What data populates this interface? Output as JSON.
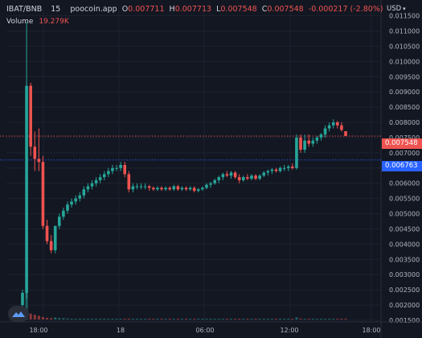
{
  "header": {
    "symbol": "IBAT/BNB",
    "interval": "15",
    "source": "poocoin.app",
    "open_label": "O",
    "open": "0.007711",
    "high_label": "H",
    "high": "0.007713",
    "low_label": "L",
    "low": "0.007548",
    "close_label": "C",
    "close": "0.007548",
    "change": "-0.000217 (-2.80%)"
  },
  "volume": {
    "label": "Volume",
    "value": "19.279K"
  },
  "currency": {
    "label": "USD"
  },
  "price_tags": {
    "last": "0.007548",
    "prev": "0.006763"
  },
  "colors": {
    "background": "#131722",
    "up": "#26a69a",
    "down": "#ef5350",
    "grid": "#1e2230",
    "prev_line": "#2962ff"
  },
  "icons": {
    "logo": "tradingview-logo-icon",
    "chevron": "chevron-down-icon"
  },
  "chart_data": {
    "type": "candlestick",
    "x_ticks": [
      "18:00",
      "18",
      "06:00",
      "12:00",
      "18:00"
    ],
    "y_ticks": [
      "0.011500",
      "0.011000",
      "0.010500",
      "0.010000",
      "0.009500",
      "0.009000",
      "0.008500",
      "0.008000",
      "0.007500",
      "0.007000",
      "0.006500",
      "0.006000",
      "0.005500",
      "0.005000",
      "0.004500",
      "0.004000",
      "0.003500",
      "0.003000",
      "0.002500",
      "0.002000",
      "0.001500"
    ],
    "ylim": [
      0.0015,
      0.0117
    ],
    "grid": true,
    "candles": [
      [
        0.002,
        0.0025,
        0.0019,
        0.0024
      ],
      [
        0.0024,
        0.0113,
        0.0022,
        0.0092
      ],
      [
        0.0092,
        0.0093,
        0.0069,
        0.0072
      ],
      [
        0.0072,
        0.0077,
        0.0064,
        0.0068
      ],
      [
        0.0068,
        0.0078,
        0.0064,
        0.0067
      ],
      [
        0.0067,
        0.0069,
        0.0045,
        0.0046
      ],
      [
        0.0046,
        0.0048,
        0.004,
        0.0041
      ],
      [
        0.0041,
        0.0043,
        0.0037,
        0.0038
      ],
      [
        0.0038,
        0.0046,
        0.0037,
        0.0046
      ],
      [
        0.0046,
        0.005,
        0.0045,
        0.0049
      ],
      [
        0.0049,
        0.0052,
        0.0048,
        0.0051
      ],
      [
        0.0051,
        0.0054,
        0.005,
        0.0053
      ],
      [
        0.0053,
        0.0055,
        0.0052,
        0.0054
      ],
      [
        0.0054,
        0.0056,
        0.0053,
        0.0055
      ],
      [
        0.0055,
        0.0057,
        0.0054,
        0.0056
      ],
      [
        0.0056,
        0.0059,
        0.0055,
        0.0058
      ],
      [
        0.0058,
        0.006,
        0.0057,
        0.0059
      ],
      [
        0.0059,
        0.0061,
        0.0058,
        0.006
      ],
      [
        0.006,
        0.0062,
        0.0059,
        0.0061
      ],
      [
        0.0061,
        0.0063,
        0.006,
        0.0062
      ],
      [
        0.0062,
        0.0064,
        0.0061,
        0.0063
      ],
      [
        0.0063,
        0.0065,
        0.0062,
        0.0064
      ],
      [
        0.0064,
        0.0066,
        0.0063,
        0.0065
      ],
      [
        0.0065,
        0.0066,
        0.0064,
        0.0065
      ],
      [
        0.0065,
        0.0067,
        0.0064,
        0.0066
      ],
      [
        0.0066,
        0.0067,
        0.0062,
        0.0063
      ],
      [
        0.0063,
        0.0064,
        0.0057,
        0.0058
      ],
      [
        0.0058,
        0.006,
        0.0057,
        0.0059
      ],
      [
        0.0059,
        0.006,
        0.0058,
        0.0059
      ],
      [
        0.0059,
        0.006,
        0.0058,
        0.0059
      ],
      [
        0.0059,
        0.006,
        0.0058,
        0.0059
      ],
      [
        0.0059,
        0.00595,
        0.00575,
        0.00585
      ],
      [
        0.00585,
        0.0059,
        0.00575,
        0.0058
      ],
      [
        0.0058,
        0.0059,
        0.00575,
        0.00585
      ],
      [
        0.00585,
        0.0059,
        0.00575,
        0.0058
      ],
      [
        0.0058,
        0.0059,
        0.00575,
        0.00585
      ],
      [
        0.00585,
        0.0059,
        0.00575,
        0.0058
      ],
      [
        0.0058,
        0.00595,
        0.00575,
        0.0059
      ],
      [
        0.0059,
        0.00595,
        0.00575,
        0.0058
      ],
      [
        0.0058,
        0.0059,
        0.00575,
        0.00585
      ],
      [
        0.00585,
        0.0059,
        0.00575,
        0.0058
      ],
      [
        0.0058,
        0.0059,
        0.00575,
        0.00585
      ],
      [
        0.00585,
        0.0059,
        0.0057,
        0.00575
      ],
      [
        0.00575,
        0.00585,
        0.0057,
        0.0058
      ],
      [
        0.0058,
        0.0059,
        0.00575,
        0.00585
      ],
      [
        0.00585,
        0.006,
        0.0058,
        0.00595
      ],
      [
        0.00595,
        0.00605,
        0.00585,
        0.006
      ],
      [
        0.006,
        0.00615,
        0.00595,
        0.0061
      ],
      [
        0.0061,
        0.00625,
        0.006,
        0.0062
      ],
      [
        0.0062,
        0.00635,
        0.0061,
        0.0063
      ],
      [
        0.0063,
        0.0064,
        0.0062,
        0.00625
      ],
      [
        0.00625,
        0.0064,
        0.00615,
        0.00635
      ],
      [
        0.00635,
        0.0064,
        0.00615,
        0.0062
      ],
      [
        0.0062,
        0.0063,
        0.006,
        0.0061
      ],
      [
        0.0061,
        0.00625,
        0.00605,
        0.0062
      ],
      [
        0.0062,
        0.0063,
        0.0061,
        0.00615
      ],
      [
        0.00615,
        0.0063,
        0.0061,
        0.00625
      ],
      [
        0.00625,
        0.0063,
        0.0061,
        0.00615
      ],
      [
        0.00615,
        0.0063,
        0.0061,
        0.00625
      ],
      [
        0.00625,
        0.0064,
        0.0062,
        0.00635
      ],
      [
        0.00635,
        0.00645,
        0.00625,
        0.0064
      ],
      [
        0.0064,
        0.0065,
        0.0063,
        0.00645
      ],
      [
        0.00645,
        0.0065,
        0.00635,
        0.0064
      ],
      [
        0.0064,
        0.00655,
        0.00635,
        0.0065
      ],
      [
        0.0065,
        0.0066,
        0.0064,
        0.0065
      ],
      [
        0.0065,
        0.0066,
        0.0064,
        0.00655
      ],
      [
        0.00655,
        0.00665,
        0.00645,
        0.0065
      ],
      [
        0.0065,
        0.0076,
        0.00645,
        0.0075
      ],
      [
        0.0075,
        0.0076,
        0.007,
        0.0071
      ],
      [
        0.0071,
        0.0076,
        0.007,
        0.0074
      ],
      [
        0.0074,
        0.0076,
        0.0072,
        0.0073
      ],
      [
        0.0073,
        0.0075,
        0.0072,
        0.0074
      ],
      [
        0.0074,
        0.00755,
        0.0073,
        0.0075
      ],
      [
        0.0075,
        0.00765,
        0.0074,
        0.0076
      ],
      [
        0.0076,
        0.0079,
        0.0075,
        0.0078
      ],
      [
        0.0078,
        0.008,
        0.0077,
        0.0079
      ],
      [
        0.0079,
        0.0081,
        0.0078,
        0.008
      ],
      [
        0.008,
        0.00805,
        0.0078,
        0.0079
      ],
      [
        0.0079,
        0.008,
        0.0077,
        0.00775
      ],
      [
        0.00771,
        0.00771,
        0.00755,
        0.00755
      ]
    ],
    "volumes": [
      0.6,
      19.3,
      3.5,
      2.8,
      2.2,
      1.5,
      1.0,
      0.8,
      1.2,
      0.9,
      0.8,
      0.6,
      0.5,
      0.5,
      0.4,
      0.5,
      0.4,
      0.4,
      0.4,
      0.3,
      0.4,
      0.3,
      0.3,
      0.3,
      0.3,
      0.4,
      0.5,
      0.3,
      0.2,
      0.2,
      0.2,
      0.2,
      0.2,
      0.2,
      0.2,
      0.2,
      0.2,
      0.2,
      0.2,
      0.2,
      0.2,
      0.2,
      0.2,
      0.2,
      0.2,
      0.2,
      0.2,
      0.2,
      0.3,
      0.3,
      0.2,
      0.2,
      0.3,
      0.3,
      0.2,
      0.2,
      0.2,
      0.2,
      0.2,
      0.3,
      0.2,
      0.2,
      0.2,
      0.2,
      0.2,
      0.2,
      0.2,
      1.3,
      0.6,
      0.4,
      0.3,
      0.3,
      0.2,
      0.3,
      0.4,
      0.3,
      0.3,
      0.3,
      0.3,
      0.2
    ]
  }
}
